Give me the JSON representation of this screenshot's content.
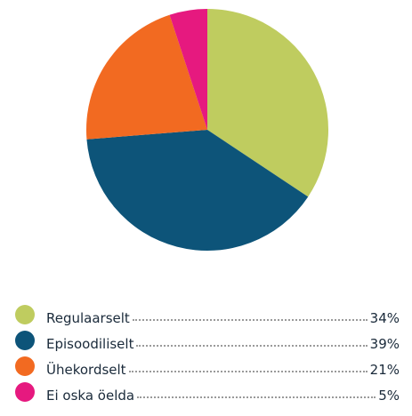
{
  "chart_data": {
    "type": "pie",
    "categories": [
      "Regulaarselt",
      "Episoodiliselt",
      "Ühekordselt",
      "Ei oska öelda"
    ],
    "values": [
      34,
      39,
      21,
      5
    ],
    "value_labels": [
      "34%",
      "39%",
      "21%",
      "5%"
    ],
    "colors": [
      "#bfcc5f",
      "#0d5479",
      "#f26a21",
      "#e6197f"
    ]
  }
}
